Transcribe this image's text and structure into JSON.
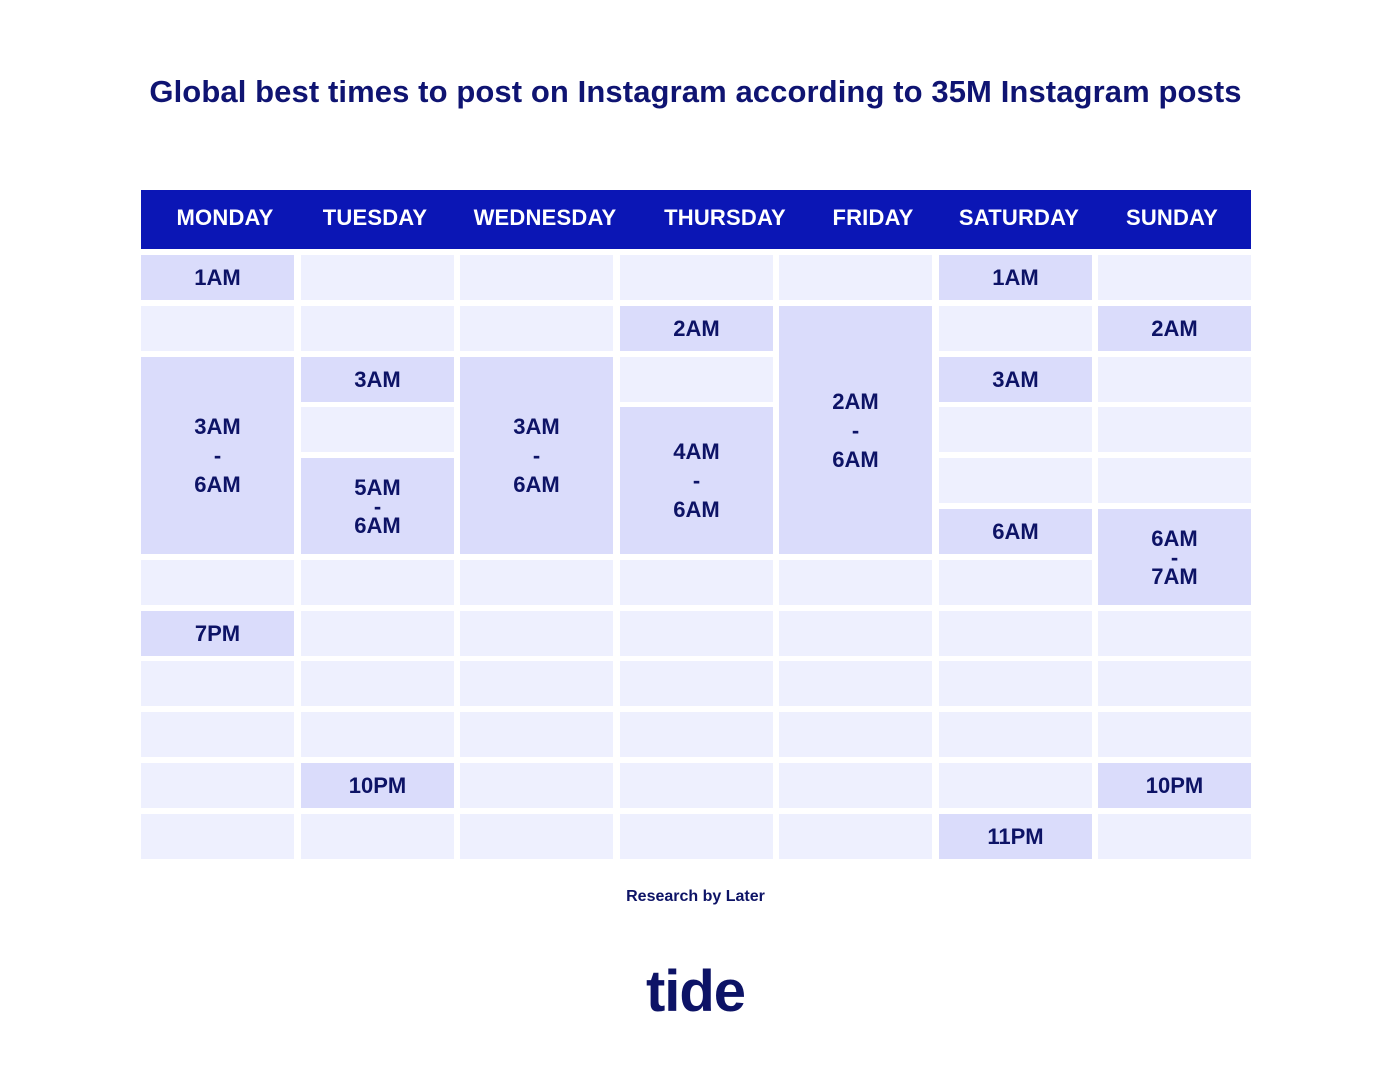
{
  "title": "Global best times to post on Instagram according to 35M Instagram posts",
  "source": "Research by Later",
  "logo": "tide",
  "colors": {
    "header": "#0b16b5",
    "empty_cell": "#eef0fe",
    "highlight_cell": "#dadcfb",
    "text": "#0d1366"
  },
  "chart_data": {
    "type": "table",
    "title": "Global best times to post on Instagram according to 35M Instagram posts",
    "columns": [
      "MONDAY",
      "TUESDAY",
      "WEDNESDAY",
      "THURSDAY",
      "FRIDAY",
      "SATURDAY",
      "SUNDAY"
    ],
    "best_times": [
      {
        "day": "MONDAY",
        "times": [
          {
            "label": "1AM",
            "start_hour": 1,
            "end_hour": 1
          },
          {
            "label": "3AM\n-\n6AM",
            "start_hour": 3,
            "end_hour": 6
          },
          {
            "label": "7PM",
            "start_hour": 19,
            "end_hour": 19
          }
        ]
      },
      {
        "day": "TUESDAY",
        "times": [
          {
            "label": "3AM",
            "start_hour": 3,
            "end_hour": 3
          },
          {
            "label": "5AM\n-\n6AM",
            "start_hour": 5,
            "end_hour": 6
          },
          {
            "label": "10PM",
            "start_hour": 22,
            "end_hour": 22
          }
        ]
      },
      {
        "day": "WEDNESDAY",
        "times": [
          {
            "label": "3AM\n-\n6AM",
            "start_hour": 3,
            "end_hour": 6
          }
        ]
      },
      {
        "day": "THURSDAY",
        "times": [
          {
            "label": "2AM",
            "start_hour": 2,
            "end_hour": 2
          },
          {
            "label": "4AM\n-\n6AM",
            "start_hour": 4,
            "end_hour": 6
          }
        ]
      },
      {
        "day": "FRIDAY",
        "times": [
          {
            "label": "2AM\n-\n6AM",
            "start_hour": 2,
            "end_hour": 6
          }
        ]
      },
      {
        "day": "SATURDAY",
        "times": [
          {
            "label": "1AM",
            "start_hour": 1,
            "end_hour": 1
          },
          {
            "label": "3AM",
            "start_hour": 3,
            "end_hour": 3
          },
          {
            "label": "6AM",
            "start_hour": 6,
            "end_hour": 6
          },
          {
            "label": "11PM",
            "start_hour": 23,
            "end_hour": 23
          }
        ]
      },
      {
        "day": "SUNDAY",
        "times": [
          {
            "label": "2AM",
            "start_hour": 2,
            "end_hour": 2
          },
          {
            "label": "6AM\n-\n7AM",
            "start_hour": 6,
            "end_hour": 7
          },
          {
            "label": "10PM",
            "start_hour": 22,
            "end_hour": 22
          }
        ]
      }
    ]
  }
}
